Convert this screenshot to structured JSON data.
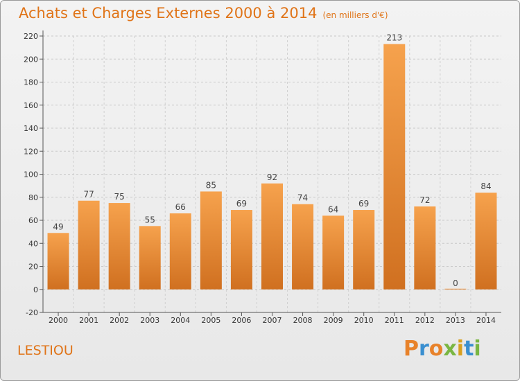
{
  "header": {
    "title": "Achats et Charges Externes 2000 à 2014",
    "subtitle": "(en milliers d'€)"
  },
  "footer": {
    "place": "LESTIOU",
    "logo_text": "Proxiti"
  },
  "colors": {
    "accent": "#e07418",
    "bar_light": "#f6a24d",
    "bar_dark": "#d07020"
  },
  "chart_data": {
    "type": "bar",
    "categories": [
      "2000",
      "2001",
      "2002",
      "2003",
      "2004",
      "2005",
      "2006",
      "2007",
      "2008",
      "2009",
      "2010",
      "2011",
      "2012",
      "2013",
      "2014"
    ],
    "values": [
      49,
      77,
      75,
      55,
      66,
      85,
      69,
      92,
      74,
      64,
      69,
      213,
      72,
      0,
      84
    ],
    "title": "Achats et Charges Externes 2000 à 2014",
    "subtitle": "(en milliers d'€)",
    "xlabel": "",
    "ylabel": "",
    "ylim": [
      -20,
      220
    ],
    "yticks": [
      -20,
      0,
      20,
      40,
      60,
      80,
      100,
      120,
      140,
      160,
      180,
      200,
      220
    ],
    "grid": "horizontal dashed",
    "legend": "none"
  }
}
